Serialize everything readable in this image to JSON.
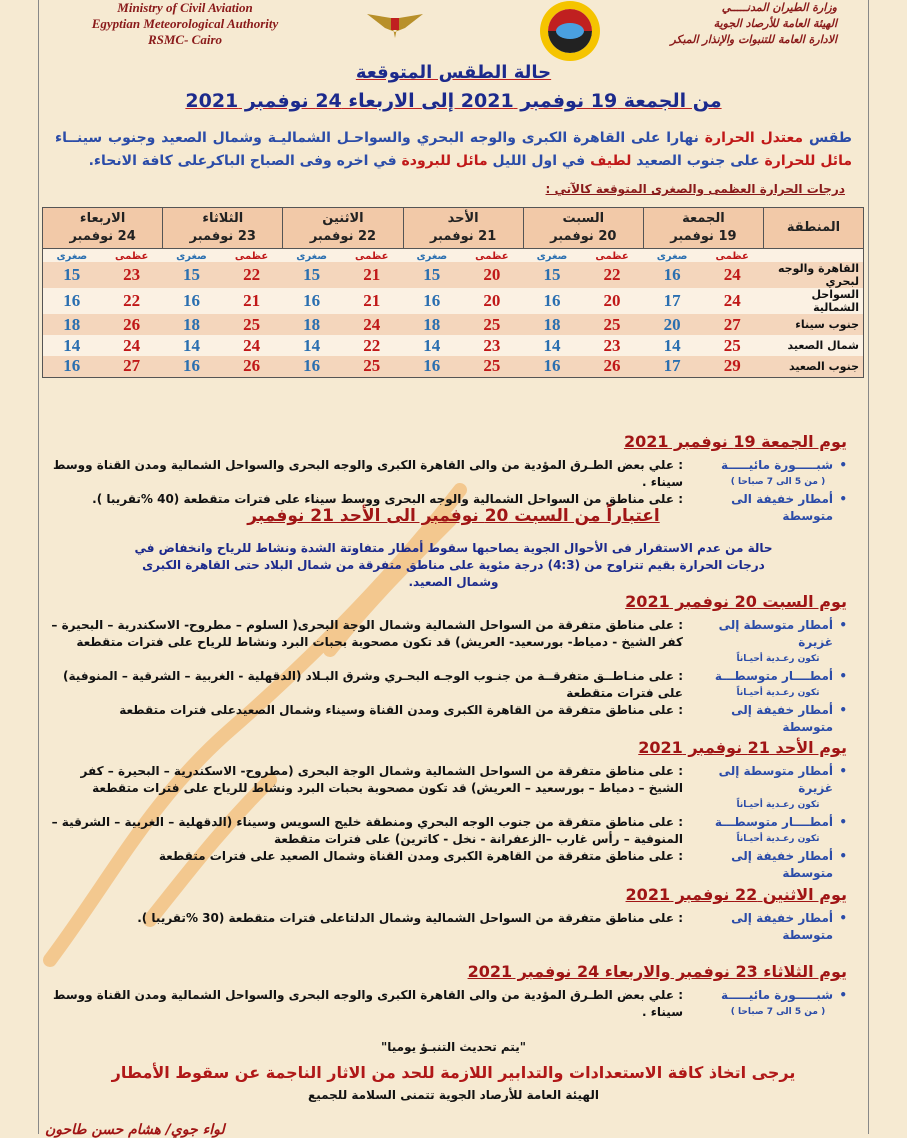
{
  "header": {
    "en": [
      "Ministry of Civil Aviation",
      "Egyptian Meteorological Authority",
      "RSMC- Cairo"
    ],
    "ar": [
      "وزارة الطيران المدنـــــي",
      "الهيئة العامة للأرصاد الجوية",
      "الادارة العامة للتنبوات والإنذار المبكر"
    ]
  },
  "title": "حالة الطقس المتوقعة",
  "period": "من الجمعة 19 نوفمبر 2021   إلى الاربعاء 24 نوفمبر 2021",
  "intro": [
    {
      "t": "طقس ",
      "r": false
    },
    {
      "t": "معتدل الحرارة",
      "r": true
    },
    {
      "t": " نهارا على القاهرة الكبرى والوجه البحري والسواحـل الشماليـة وشمال الصعيد وجنوب سينــاء ",
      "r": false
    },
    {
      "t": "مائل للحرارة",
      "r": true
    },
    {
      "t": " على جنوب الصعيد ",
      "r": false
    },
    {
      "t": "لطيف",
      "r": true
    },
    {
      "t": " في اول الليل ",
      "r": false
    },
    {
      "t": "مائل للبرودة",
      "r": true
    },
    {
      "t": " في اخره وفى الصباح الباكرعلى كافة الانحاء.",
      "r": false
    }
  ],
  "table_caption": "درجات الحرارة العظمى والصغرى المتوقعة كالآتي :",
  "table": {
    "region_header": "المنطقة",
    "max_label": "عظمى",
    "min_label": "صغرى",
    "days": [
      {
        "day": "الجمعة",
        "date": "19 نوفمبر"
      },
      {
        "day": "السبت",
        "date": "20 نوفمبر"
      },
      {
        "day": "الأحد",
        "date": "21 نوفمبر"
      },
      {
        "day": "الاثنين",
        "date": "22 نوفمبر"
      },
      {
        "day": "الثلاثاء",
        "date": "23 نوفمبر"
      },
      {
        "day": "الاربعاء",
        "date": "24 نوفمبر"
      }
    ],
    "rows": [
      {
        "region": "القاهرة والوجه لبحري",
        "values": [
          [
            24,
            16
          ],
          [
            22,
            15
          ],
          [
            20,
            15
          ],
          [
            21,
            15
          ],
          [
            22,
            15
          ],
          [
            23,
            15
          ]
        ]
      },
      {
        "region": "السواحل الشمالية",
        "values": [
          [
            24,
            17
          ],
          [
            20,
            16
          ],
          [
            20,
            16
          ],
          [
            21,
            16
          ],
          [
            21,
            16
          ],
          [
            22,
            16
          ]
        ]
      },
      {
        "region": "جنوب سيناء",
        "values": [
          [
            27,
            20
          ],
          [
            25,
            18
          ],
          [
            25,
            18
          ],
          [
            24,
            18
          ],
          [
            25,
            18
          ],
          [
            26,
            18
          ]
        ]
      },
      {
        "region": "شمال الصعيد",
        "values": [
          [
            25,
            14
          ],
          [
            23,
            14
          ],
          [
            23,
            14
          ],
          [
            22,
            14
          ],
          [
            24,
            14
          ],
          [
            24,
            14
          ]
        ]
      },
      {
        "region": "جنوب الصعيد",
        "values": [
          [
            29,
            17
          ],
          [
            26,
            16
          ],
          [
            25,
            16
          ],
          [
            25,
            16
          ],
          [
            26,
            16
          ],
          [
            27,
            16
          ]
        ]
      }
    ]
  },
  "sections": [
    {
      "heading": "يوم الجمعة 19 نوفمبر 2021",
      "items": [
        {
          "label": "شبـــــورة مائيـــــة",
          "note": "( من 5 الى 7 صباحا )",
          "text": ": علي بعض الطـرق المؤدية من والى القاهرة الكبرى والوجه البحرى والسواحل الشمالية ومدن القناة ووسط سيناء ."
        },
        {
          "label": "أمطار خفيفة الى متوسطة",
          "text": ": على مناطق من السواحل الشمالية والوجه البحرى ووسط سيناء على فترات متقطعة (40 %تقريبا )."
        }
      ]
    },
    {
      "heading": "يوم السبت 20 نوفمبر 2021",
      "items": [
        {
          "label": "أمطار متوسطة إلى غزيرة",
          "note": "تكون رعـدية أحيـاناً",
          "text": ": على مناطق متفرقة من السواحل الشمالية وشمال الوجة البحرى( السلوم – مطروح- الاسكندرية – البحيرة – كفر الشيخ - دمياط- بورسعيد- العريش) قد تكون مصحوبة بحبات البرد ونشاط للرياح على فترات متقطعة"
        },
        {
          "label": "أمطــــار متوسطـــة",
          "note": "تكون رعـدية أحيـاناً",
          "text": ": على منـاطــق متفرقــة من جنـوب الوجـه البحـري وشرق البـلاد (الدقهلية - الغربية – الشرقية – المنوفية) على فترات متقطعة"
        },
        {
          "label": "أمطار خفيفة إلى متوسطة",
          "text": ": على مناطق متفرقة من القاهرة الكبرى ومدن القناة وسيناء وشمال الصعيدعلى فترات متقطعة"
        }
      ]
    },
    {
      "heading": "يوم الأحد 21 نوفمبر 2021",
      "items": [
        {
          "label": "أمطار متوسطة إلى غزيرة",
          "note": "تكون رعـدية أحيـاناً",
          "text": ": على مناطق متفرقة من السواحل الشمالية وشمال الوجة البحرى (مطروح- الاسكندرية – البحيرة – كفر الشيخ – دمياط – بورسعيد – العريش) قد تكون مصحوبة بحبات البرد ونشاط للرياح على فترات متقطعة"
        },
        {
          "label": "أمطــــار متوسطـــة",
          "note": "تكون رعـدية أحيـاناً",
          "text": ": على مناطق متفرقة من جنوب الوجه البحري ومنطقة خليج السويس وسيناء (الدقهلية – الغربية – الشرقية – المنوفية – رأس غارب –الزعفرانة - نخل - كاترين) على فترات متقطعة"
        },
        {
          "label": "أمطار خفيفة إلى متوسطة",
          "text": ": على مناطق متفرقة من القاهرة الكبرى ومدن القناة وشمال الصعيد على فترات متقطعة"
        }
      ]
    },
    {
      "heading": "يوم الاثنين 22 نوفمبر 2021",
      "items": [
        {
          "label": "أمطار خفيفة إلى متوسطة",
          "text": ": على مناطق متفرقة من السواحل الشمالية وشمال الدلتاعلى فترات متقطعة (30 %تقريبا )."
        }
      ]
    },
    {
      "heading": "يوم الثلاثاء 23 نوفمبر والاربعاء 24 نوفمبر 2021",
      "items": [
        {
          "label": "شبـــــورة مائيـــــة",
          "note": "( من 5 الى 7 صباحا )",
          "text": ": علي بعض الطـرق المؤدية من والى القاهرة الكبرى والوجه البحرى والسواحل الشمالية ومدن القناة ووسط سيناء ."
        }
      ]
    }
  ],
  "instability": {
    "heading": "اعتباراً من السبت 20 نوفمبر الى الأحد 21 نوفمبر",
    "text": "حالة من عدم الاستقرار فى الأحوال الجوية يصاحبها سقوط أمطار متفاوتة الشدة ونشاط للرياح وانخفاض في درجات الحرارة بقيم تتراوح من (4:3) درجة مئوية على مناطق متفرقة من شمال البلاد حتى القاهرة الكبرى وشمال الصعيد."
  },
  "footer": {
    "update": "\"يتم تحديث التنبـؤ يوميا\"",
    "warning": "يرجى اتخاذ كافة الاستعدادات والتدابير اللازمة للحد من الاثار الناجمة عن سقوط الأمطار",
    "wish": "الهيئة العامة للأرصاد الجوية تتمنى السلامة للجميع",
    "signature": "لواء جوي/ هشام حسن طاحون"
  },
  "colors": {
    "background": "#f6ead2",
    "heading_red": "#a01515",
    "blue": "#2b4ca8",
    "max": "#c01818",
    "min": "#2a6fb0"
  }
}
